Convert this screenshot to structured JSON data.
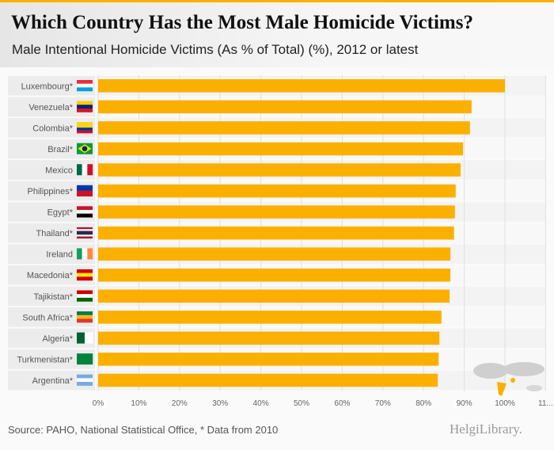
{
  "header": {
    "title": "Which Country Has the Most Male Homicide Victims?",
    "subtitle": "Male Intentional Homicide Victims (As % of Total) (%), 2012 or latest"
  },
  "footer": {
    "source": "Source: PAHO, National Statistical Office, * Data from 2010",
    "logo": "HelgiLibrary."
  },
  "colors": {
    "bar": "#fbb000",
    "accent": "#fbb000"
  },
  "chart_data": {
    "type": "bar",
    "orientation": "horizontal",
    "title": "Which Country Has the Most Male Homicide Victims?",
    "subtitle": "Male Intentional Homicide Victims (As % of Total) (%), 2012 or latest",
    "categories": [
      "Luxembourg*",
      "Venezuela*",
      "Colombia*",
      "Brazil*",
      "Mexico",
      "Philippines*",
      "Egypt*",
      "Thailand*",
      "Ireland",
      "Macedonia*",
      "Tajikistan*",
      "South Africa*",
      "Algeria*",
      "Turkmenistan*",
      "Argentina*"
    ],
    "values": [
      100,
      91.8,
      91.4,
      89.7,
      89.1,
      87.9,
      87.7,
      87.5,
      86.6,
      86.6,
      86.4,
      84.4,
      83.9,
      83.7,
      83.5
    ],
    "flags": [
      [
        "h",
        "#ed2939",
        "#ffffff",
        "#00a1de"
      ],
      [
        "h",
        "#ffcc00",
        "#00247d",
        "#cf142b"
      ],
      [
        "h",
        "#fcd116",
        "#fcd116",
        "#003893",
        "#ce1126"
      ],
      [
        "d",
        "#009c3b",
        "#ffdf00",
        "#002776"
      ],
      [
        "v",
        "#006847",
        "#ffffff",
        "#ce1126"
      ],
      [
        "h",
        "#0038a8",
        "#ce1126"
      ],
      [
        "h",
        "#ce1126",
        "#ffffff",
        "#000000"
      ],
      [
        "h",
        "#a51931",
        "#f4f5f8",
        "#2d2a4a",
        "#2d2a4a",
        "#f4f5f8",
        "#a51931"
      ],
      [
        "v",
        "#169b62",
        "#ffffff",
        "#ff883e"
      ],
      [
        "h",
        "#d20000",
        "#ffe600",
        "#d20000"
      ],
      [
        "h",
        "#cc0000",
        "#ffffff",
        "#006600"
      ],
      [
        "h",
        "#007a4d",
        "#ffb612",
        "#de3831"
      ],
      [
        "v",
        "#006233",
        "#ffffff"
      ],
      [
        "v",
        "#00843d",
        "#00843d",
        "#00843d"
      ],
      [
        "h",
        "#74acdf",
        "#ffffff",
        "#74acdf"
      ]
    ],
    "xticks": [
      "0%",
      "10%",
      "20%",
      "30%",
      "40%",
      "50%",
      "60%",
      "70%",
      "80%",
      "90%",
      "100%",
      "11..."
    ],
    "xlim": [
      0,
      110
    ],
    "grid": true,
    "xlabel": "",
    "ylabel": ""
  }
}
